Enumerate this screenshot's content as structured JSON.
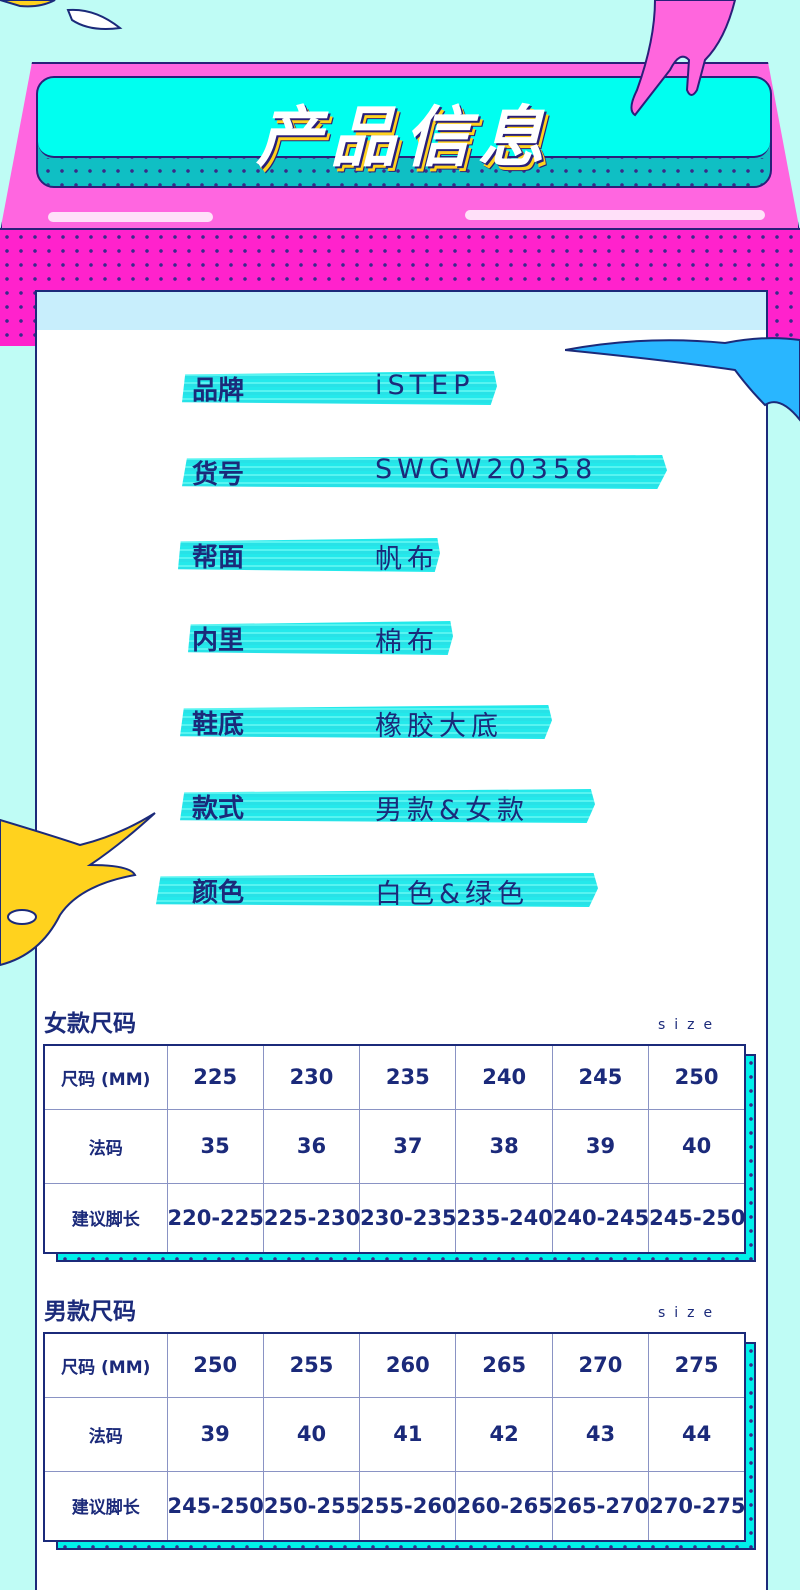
{
  "header": {
    "title": "产品信息"
  },
  "colors": {
    "background": "#bffcf5",
    "accent_pink": "#ff22cc",
    "accent_cyan": "#00fff0",
    "text": "#1b2a7a"
  },
  "info": [
    {
      "label": "品牌",
      "value": "iSTEP"
    },
    {
      "label": "货号",
      "value": "SWGW20358"
    },
    {
      "label": "帮面",
      "value": "帆布"
    },
    {
      "label": "内里",
      "value": "棉布"
    },
    {
      "label": "鞋底",
      "value": "橡胶大底"
    },
    {
      "label": "款式",
      "value": "男款&女款"
    },
    {
      "label": "颜色",
      "value": "白色&绿色"
    }
  ],
  "women": {
    "title": "女款尺码",
    "size_tag": "size",
    "rows": [
      {
        "head": "尺码 (MM)",
        "cells": [
          "225",
          "230",
          "235",
          "240",
          "245",
          "250"
        ]
      },
      {
        "head": "法码",
        "cells": [
          "35",
          "36",
          "37",
          "38",
          "39",
          "40"
        ]
      },
      {
        "head": "建议脚长",
        "cells": [
          "220-225",
          "225-230",
          "230-235",
          "235-240",
          "240-245",
          "245-250"
        ]
      }
    ]
  },
  "men": {
    "title": "男款尺码",
    "size_tag": "size",
    "rows": [
      {
        "head": "尺码 (MM)",
        "cells": [
          "250",
          "255",
          "260",
          "265",
          "270",
          "275"
        ]
      },
      {
        "head": "法码",
        "cells": [
          "39",
          "40",
          "41",
          "42",
          "43",
          "44"
        ]
      },
      {
        "head": "建议脚长",
        "cells": [
          "245-250",
          "250-255",
          "255-260",
          "260-265",
          "265-270",
          "270-275"
        ]
      }
    ]
  }
}
